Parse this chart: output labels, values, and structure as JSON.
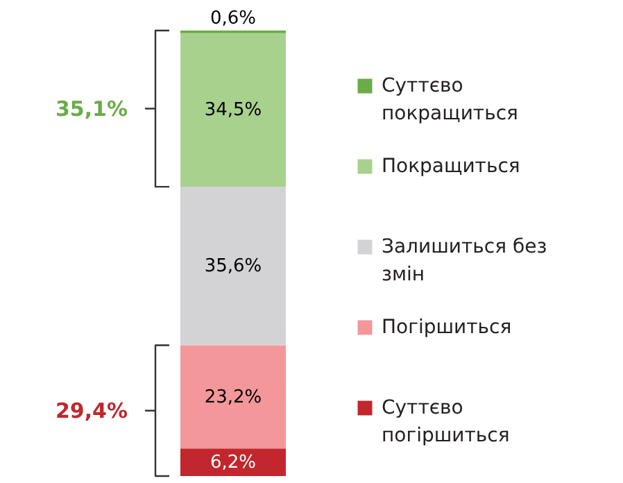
{
  "chart_data": {
    "type": "bar",
    "stacked": true,
    "categories": [
      null
    ],
    "legend": "right",
    "series": [
      {
        "name": "Суттєво погіршиться",
        "color": "#c1272d",
        "values": [
          6.2
        ],
        "value_labels": [
          "6,2%"
        ]
      },
      {
        "name": "Погіршиться",
        "color": "#f4979a",
        "values": [
          23.2
        ],
        "value_labels": [
          "23,2%"
        ]
      },
      {
        "name": "Залишиться без змін",
        "color": "#d3d3d5",
        "values": [
          35.6
        ],
        "value_labels": [
          "35,6%"
        ]
      },
      {
        "name": "Покращиться",
        "color": "#a8d18d",
        "values": [
          34.5
        ],
        "value_labels": [
          "34,5%"
        ]
      },
      {
        "name": "Суттєво покращиться",
        "color": "#6aac46",
        "values": [
          0.6
        ],
        "value_labels": [
          "0,6%"
        ]
      }
    ],
    "annotations": [
      "35,1%",
      "29,4%"
    ]
  }
}
